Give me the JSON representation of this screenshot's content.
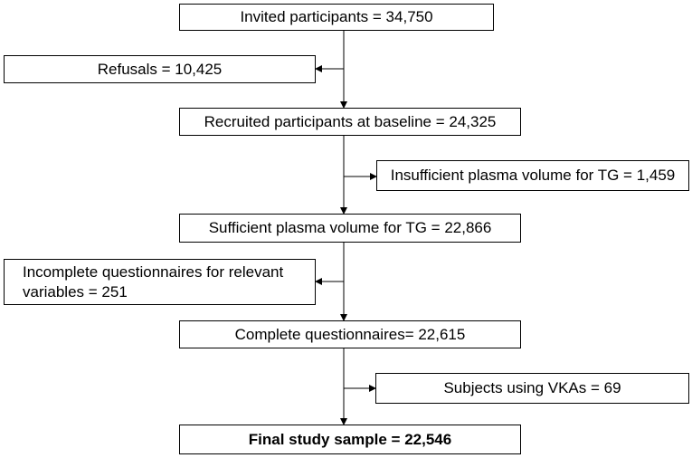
{
  "flowchart": {
    "boxes": {
      "invited": "Invited participants = 34,750",
      "refusals": "Refusals = 10,425",
      "recruited": "Recruited participants at baseline = 24,325",
      "insufficient_plasma": "Insufficient plasma volume for TG = 1,459",
      "sufficient_plasma": "Sufficient plasma volume for TG = 22,866",
      "incomplete_questionnaires": "Incomplete questionnaires for relevant variables = 251",
      "complete_questionnaires": "Complete questionnaires= 22,615",
      "vka_users": "Subjects using VKAs = 69",
      "final_sample": "Final study sample = 22,546"
    },
    "colors": {
      "border": "#000000",
      "background": "#ffffff",
      "text": "#000000"
    }
  }
}
